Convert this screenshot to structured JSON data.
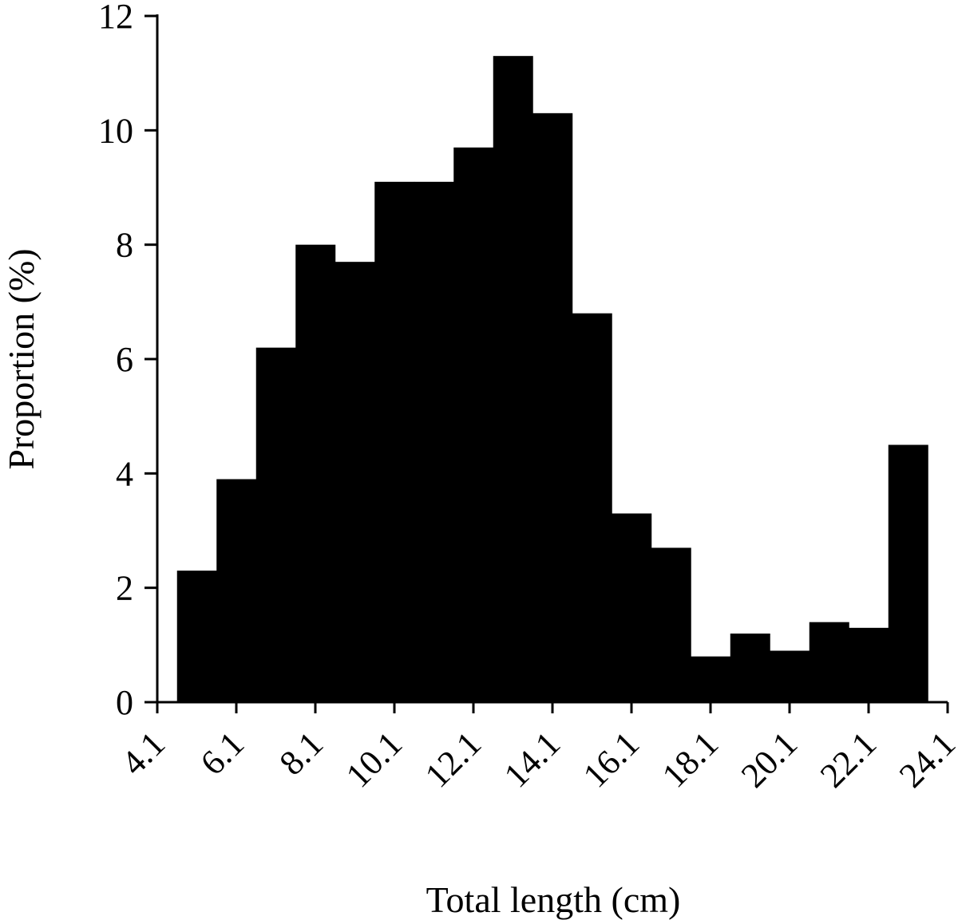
{
  "chart_data": {
    "type": "bar",
    "title": "",
    "xlabel": "Total length (cm)",
    "ylabel": "Proportion (%)",
    "xlim": [
      4.1,
      24.1
    ],
    "ylim": [
      0,
      12
    ],
    "x_ticks": [
      "4.1",
      "6.1",
      "8.1",
      "10.1",
      "12.1",
      "14.1",
      "16.1",
      "18.1",
      "20.1",
      "22.1",
      "24.1"
    ],
    "y_ticks": [
      "0",
      "2",
      "4",
      "6",
      "8",
      "10",
      "12"
    ],
    "grid": false,
    "legend": "none",
    "bar_color": "#000000",
    "bins": [
      {
        "start": 4.6,
        "end": 5.6,
        "value": 2.3
      },
      {
        "start": 5.6,
        "end": 6.6,
        "value": 3.9
      },
      {
        "start": 6.6,
        "end": 7.6,
        "value": 6.2
      },
      {
        "start": 7.6,
        "end": 8.6,
        "value": 8.0
      },
      {
        "start": 8.6,
        "end": 9.6,
        "value": 7.7
      },
      {
        "start": 9.6,
        "end": 10.6,
        "value": 9.1
      },
      {
        "start": 10.6,
        "end": 11.6,
        "value": 9.1
      },
      {
        "start": 11.6,
        "end": 12.6,
        "value": 9.7
      },
      {
        "start": 12.6,
        "end": 13.6,
        "value": 11.3
      },
      {
        "start": 13.6,
        "end": 14.6,
        "value": 10.3
      },
      {
        "start": 14.6,
        "end": 15.6,
        "value": 6.8
      },
      {
        "start": 15.6,
        "end": 16.6,
        "value": 3.3
      },
      {
        "start": 16.6,
        "end": 17.6,
        "value": 2.7
      },
      {
        "start": 17.6,
        "end": 18.6,
        "value": 0.8
      },
      {
        "start": 18.6,
        "end": 19.6,
        "value": 1.2
      },
      {
        "start": 19.6,
        "end": 20.6,
        "value": 0.9
      },
      {
        "start": 20.6,
        "end": 21.6,
        "value": 1.4
      },
      {
        "start": 21.6,
        "end": 22.6,
        "value": 1.3
      },
      {
        "start": 22.6,
        "end": 23.6,
        "value": 4.5
      }
    ]
  }
}
